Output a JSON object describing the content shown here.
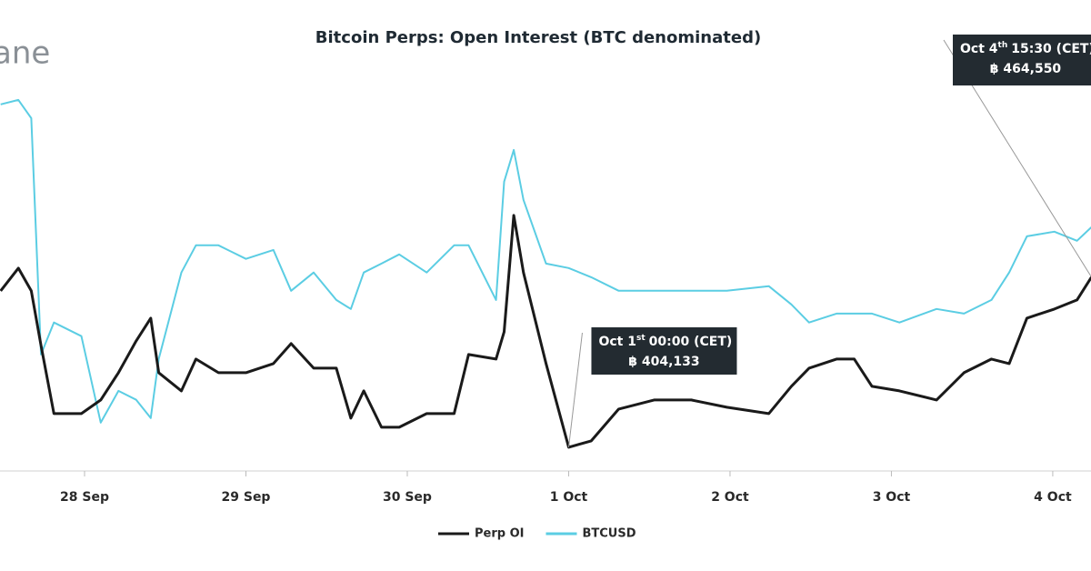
{
  "chart_data": {
    "type": "line",
    "title": "Bitcoin Perps: Open Interest (BTC denominated)",
    "watermark": "ane",
    "x": [
      -0.52,
      -0.41,
      -0.33,
      -0.27,
      -0.19,
      -0.02,
      0.1,
      0.21,
      0.32,
      0.41,
      0.46,
      0.6,
      0.69,
      0.83,
      1.0,
      1.17,
      1.28,
      1.42,
      1.56,
      1.65,
      1.73,
      1.84,
      1.95,
      2.12,
      2.29,
      2.38,
      2.55,
      2.6,
      2.66,
      2.72,
      2.86,
      3.0,
      3.14,
      3.31,
      3.53,
      3.76,
      3.98,
      4.24,
      4.38,
      4.49,
      4.66,
      4.77,
      4.88,
      5.05,
      5.28,
      5.45,
      5.62,
      5.73,
      5.84,
      6.01,
      6.15,
      6.24
    ],
    "series": [
      {
        "name": "Perp OI",
        "color": "#1a1a1a",
        "values": [
          459689,
          467764,
          459689,
          440309,
          416084,
          416084,
          420929,
          430619,
          441924,
          449999,
          430619,
          424159,
          435464,
          430619,
          430619,
          433849,
          440955,
          432234,
          432234,
          414469,
          424159,
          411239,
          411239,
          416084,
          416084,
          437079,
          435464,
          445154,
          486498,
          466149,
          433849,
          404133,
          406394,
          417699,
          420929,
          420929,
          418345,
          416084,
          425774,
          432234,
          435464,
          435464,
          425774,
          424159,
          420929,
          430619,
          435464,
          433849,
          449999,
          453229,
          456459,
          464550
        ]
      },
      {
        "name": "BTCUSD",
        "color": "#5bcde3",
        "axis": "y2",
        "values": [
          20275,
          20300,
          20198,
          18880,
          19058,
          18982,
          18500,
          18677,
          18627,
          18525,
          18855,
          19337,
          19489,
          19489,
          19413,
          19463,
          19235,
          19337,
          19184,
          19134,
          19337,
          19387,
          19438,
          19337,
          19489,
          19489,
          19184,
          19844,
          20021,
          19742,
          19387,
          19362,
          19311,
          19235,
          19235,
          19235,
          19235,
          19261,
          19159,
          19058,
          19108,
          19108,
          19108,
          19058,
          19134,
          19108,
          19184,
          19337,
          19539,
          19565,
          19514,
          19590
        ]
      }
    ],
    "xlim": [
      -0.524,
      6.237
    ],
    "xticks": [
      {
        "value": 0,
        "label": "28 Sep"
      },
      {
        "value": 1,
        "label": "29 Sep"
      },
      {
        "value": 2,
        "label": "30 Sep"
      },
      {
        "value": 3,
        "label": "1 Oct"
      },
      {
        "value": 4,
        "label": "2 Oct"
      },
      {
        "value": 5,
        "label": "3 Oct"
      },
      {
        "value": 6,
        "label": "4 Oct"
      }
    ],
    "ylim": [
      395700,
      530700
    ],
    "y2lim": [
      18230,
      20350
    ],
    "legend": "bottom",
    "annotations": [
      {
        "date": "Oct 1",
        "suffix": "st",
        "time": "00:00 (CET)",
        "value_label": "฿ 404,133",
        "x": 3.0,
        "value": 404133
      },
      {
        "date": "Oct 4",
        "suffix": "th",
        "time": "15:30 (CET)",
        "value_label": "฿ 464,550",
        "x": 6.24,
        "value": 464550
      }
    ]
  }
}
